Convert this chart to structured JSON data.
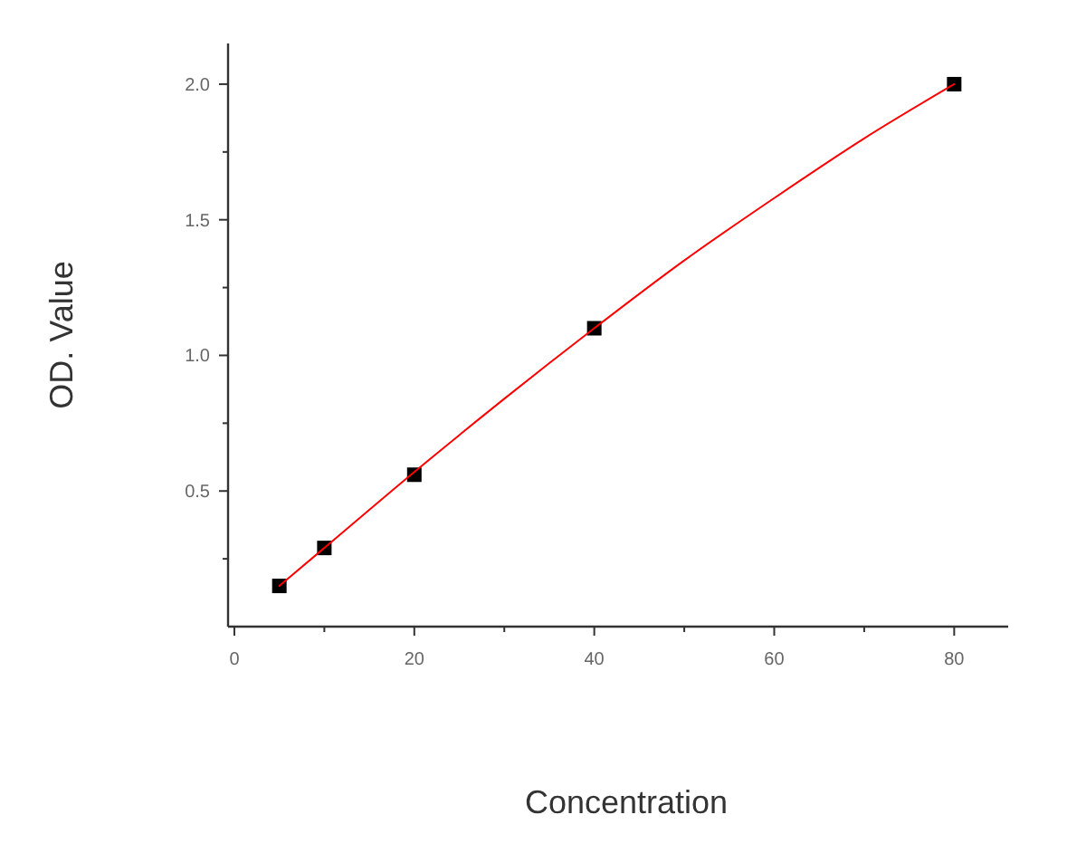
{
  "chart_data": {
    "type": "scatter",
    "xlabel": "Concentration",
    "ylabel": "OD. Value",
    "xlim": [
      -0.7,
      86
    ],
    "ylim": [
      0,
      2.15
    ],
    "xticks": [
      0,
      {
        "value": 10,
        "label": null
      },
      20,
      {
        "value": 30,
        "label": null
      },
      40,
      {
        "value": 50,
        "label": null
      },
      60,
      {
        "value": 70,
        "label": null
      },
      80
    ],
    "yticks": [
      {
        "value": 0.25,
        "label": null
      },
      0.5,
      {
        "value": 0.75,
        "label": null
      },
      {
        "value": 1,
        "label": "1.0"
      },
      {
        "value": 1.25,
        "label": null
      },
      1.5,
      {
        "value": 1.75,
        "label": null
      },
      {
        "value": 2,
        "label": "2.0"
      }
    ],
    "marker": "square",
    "series": [
      {
        "color": "#000000",
        "x": [
          5,
          10,
          20,
          40,
          80
        ],
        "values": [
          0.15,
          0.29,
          0.56,
          1.1,
          2.0
        ]
      },
      {
        "type": "line",
        "color": "#ff0000",
        "marker": "none",
        "x": [
          5,
          10,
          20,
          30,
          40,
          50,
          60,
          70,
          80
        ],
        "values": [
          0.15,
          0.29,
          0.57,
          0.84,
          1.1,
          1.35,
          1.58,
          1.8,
          2.0
        ]
      }
    ]
  }
}
